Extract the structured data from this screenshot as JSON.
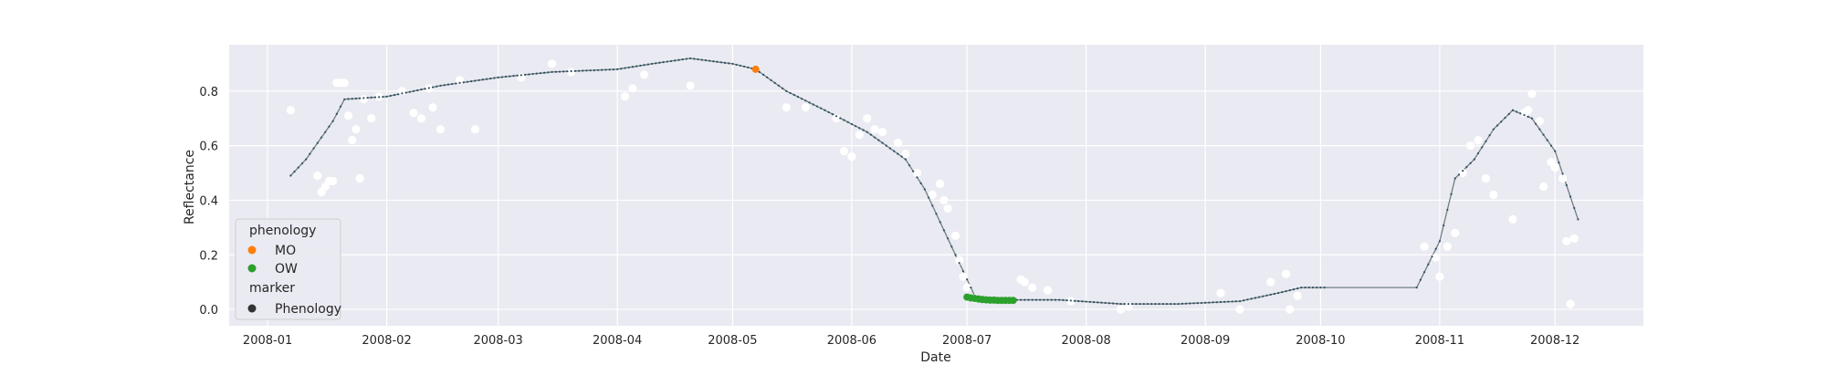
{
  "chart_data": {
    "type": "scatter",
    "xlabel": "Date",
    "ylabel": "Reflectance",
    "x_ticks": [
      "2008-01",
      "2008-02",
      "2008-03",
      "2008-04",
      "2008-05",
      "2008-06",
      "2008-07",
      "2008-08",
      "2008-09",
      "2008-10",
      "2008-11",
      "2008-12"
    ],
    "y_ticks": [
      0.0,
      0.2,
      0.4,
      0.6,
      0.8
    ],
    "y_tick_labels": [
      "0.0",
      "0.2",
      "0.4",
      "0.6",
      "0.8"
    ],
    "xlim": [
      "2007-12-22",
      "2008-12-24"
    ],
    "ylim": [
      -0.06,
      0.97
    ],
    "grid": true,
    "legend": {
      "placement": "lower-left",
      "title": "phenology",
      "entries": [
        {
          "label": "MO",
          "color": "#ff7f0e"
        },
        {
          "label": "OW",
          "color": "#2ca02c"
        }
      ],
      "marker_title": "marker",
      "marker_entries": [
        {
          "label": "Phenology",
          "color": "#333333"
        }
      ]
    },
    "colors": {
      "background": "#eaeaf2",
      "grid": "#ffffff",
      "observations": "#ffffff",
      "fit_line": "#6e7f80",
      "fit_points": "#2f4f5f"
    },
    "series": [
      {
        "role": "observations",
        "x": [
          "2008-01-07",
          "2008-01-14",
          "2008-01-15",
          "2008-01-16",
          "2008-01-17",
          "2008-01-18",
          "2008-01-19",
          "2008-01-20",
          "2008-01-21",
          "2008-01-22",
          "2008-01-23",
          "2008-01-24",
          "2008-01-25",
          "2008-01-26",
          "2008-01-28",
          "2008-01-30",
          "2008-02-05",
          "2008-02-08",
          "2008-02-10",
          "2008-02-12",
          "2008-02-13",
          "2008-02-15",
          "2008-02-20",
          "2008-02-24",
          "2008-03-07",
          "2008-03-15",
          "2008-03-20",
          "2008-04-03",
          "2008-04-05",
          "2008-04-08",
          "2008-04-20",
          "2008-05-15",
          "2008-05-20",
          "2008-05-28",
          "2008-05-30",
          "2008-06-01",
          "2008-06-03",
          "2008-06-05",
          "2008-06-07",
          "2008-06-09",
          "2008-06-13",
          "2008-06-15",
          "2008-06-18",
          "2008-06-22",
          "2008-06-24",
          "2008-06-25",
          "2008-06-26",
          "2008-06-28",
          "2008-06-29",
          "2008-06-30",
          "2008-07-01",
          "2008-07-03",
          "2008-07-15",
          "2008-07-16",
          "2008-07-18",
          "2008-07-22",
          "2008-07-28",
          "2008-08-10",
          "2008-08-12",
          "2008-09-05",
          "2008-09-10",
          "2008-09-18",
          "2008-09-22",
          "2008-09-23",
          "2008-09-25",
          "2008-10-28",
          "2008-10-31",
          "2008-11-01",
          "2008-11-03",
          "2008-11-05",
          "2008-11-07",
          "2008-11-09",
          "2008-11-11",
          "2008-11-13",
          "2008-11-15",
          "2008-11-20",
          "2008-11-23",
          "2008-11-24",
          "2008-11-25",
          "2008-11-27",
          "2008-11-28",
          "2008-11-30",
          "2008-12-01",
          "2008-12-03",
          "2008-12-04",
          "2008-12-05",
          "2008-12-06"
        ],
        "y": [
          0.73,
          0.49,
          0.43,
          0.45,
          0.47,
          0.47,
          0.83,
          0.83,
          0.83,
          0.71,
          0.62,
          0.66,
          0.48,
          0.77,
          0.7,
          0.78,
          0.8,
          0.72,
          0.7,
          0.81,
          0.74,
          0.66,
          0.84,
          0.66,
          0.85,
          0.9,
          0.87,
          0.78,
          0.81,
          0.86,
          0.82,
          0.74,
          0.74,
          0.7,
          0.58,
          0.56,
          0.64,
          0.7,
          0.66,
          0.65,
          0.61,
          0.57,
          0.5,
          0.42,
          0.46,
          0.4,
          0.37,
          0.27,
          0.18,
          0.12,
          0.08,
          0.04,
          0.11,
          0.1,
          0.08,
          0.07,
          0.03,
          0.0,
          0.01,
          0.06,
          0.0,
          0.1,
          0.13,
          0.0,
          0.05,
          0.23,
          0.19,
          0.12,
          0.23,
          0.28,
          0.5,
          0.6,
          0.62,
          0.48,
          0.42,
          0.33,
          0.72,
          0.73,
          0.79,
          0.69,
          0.45,
          0.54,
          0.52,
          0.48,
          0.25,
          0.02,
          0.26
        ]
      },
      {
        "role": "fit",
        "x": [
          "2008-01-07",
          "2008-01-11",
          "2008-01-15",
          "2008-01-18",
          "2008-01-21",
          "2008-02-01",
          "2008-02-15",
          "2008-03-01",
          "2008-03-15",
          "2008-04-01",
          "2008-04-10",
          "2008-04-20",
          "2008-05-01",
          "2008-05-07",
          "2008-05-15",
          "2008-05-25",
          "2008-06-05",
          "2008-06-15",
          "2008-06-20",
          "2008-06-25",
          "2008-06-30",
          "2008-07-03",
          "2008-07-08",
          "2008-07-14",
          "2008-07-25",
          "2008-08-10",
          "2008-08-25",
          "2008-09-10",
          "2008-09-20",
          "2008-09-26",
          "2008-10-02",
          "2008-10-26",
          "2008-11-01",
          "2008-11-05",
          "2008-11-10",
          "2008-11-15",
          "2008-11-20",
          "2008-11-25",
          "2008-12-01",
          "2008-12-07"
        ],
        "y": [
          0.49,
          0.55,
          0.63,
          0.69,
          0.77,
          0.78,
          0.82,
          0.85,
          0.87,
          0.88,
          0.9,
          0.92,
          0.9,
          0.88,
          0.8,
          0.73,
          0.65,
          0.55,
          0.44,
          0.29,
          0.14,
          0.05,
          0.04,
          0.035,
          0.035,
          0.02,
          0.02,
          0.03,
          0.06,
          0.08,
          0.08,
          0.08,
          0.25,
          0.48,
          0.55,
          0.66,
          0.73,
          0.7,
          0.58,
          0.33
        ]
      },
      {
        "role": "phenology",
        "name": "MO",
        "x": [
          "2008-05-07"
        ],
        "y": [
          0.88
        ]
      },
      {
        "role": "phenology",
        "name": "OW",
        "x": [
          "2008-07-01",
          "2008-07-02",
          "2008-07-03",
          "2008-07-04",
          "2008-07-05",
          "2008-07-06",
          "2008-07-07",
          "2008-07-08",
          "2008-07-09",
          "2008-07-10",
          "2008-07-11",
          "2008-07-12",
          "2008-07-13"
        ],
        "y": [
          0.045,
          0.042,
          0.04,
          0.038,
          0.036,
          0.035,
          0.034,
          0.034,
          0.033,
          0.033,
          0.033,
          0.033,
          0.033
        ]
      }
    ]
  }
}
